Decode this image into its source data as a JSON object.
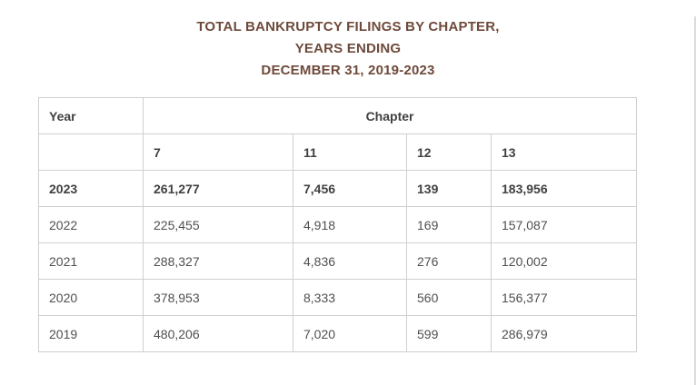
{
  "title": {
    "line1": "TOTAL BANKRUPTCY FILINGS BY CHAPTER,",
    "line2": "YEARS ENDING",
    "line3": "DECEMBER 31, 2019-2023"
  },
  "chart_data": {
    "type": "table",
    "title": "TOTAL BANKRUPTCY FILINGS BY CHAPTER, YEARS ENDING DECEMBER 31, 2019-2023",
    "group_header": "Chapter",
    "columns": [
      "Year",
      "7",
      "11",
      "12",
      "13"
    ],
    "rows": [
      [
        "2023",
        "261,277",
        "7,456",
        "139",
        "183,956"
      ],
      [
        "2022",
        "225,455",
        "4,918",
        "169",
        "157,087"
      ],
      [
        "2021",
        "288,327",
        "4,836",
        "276",
        "120,002"
      ],
      [
        "2020",
        "378,953",
        "8,333",
        "560",
        "156,377"
      ],
      [
        "2019",
        "480,206",
        "7,020",
        "599",
        "286,979"
      ]
    ],
    "bold_row_index": 0,
    "layout": "grid table with bordered cells; 'Chapter' spans the four numeric chapter columns; first data row (2023) is bold"
  },
  "colors": {
    "title": "#6e4a3b",
    "header_text": "#404040",
    "body_text": "#4f4f4f",
    "border": "#cfcfcf"
  }
}
